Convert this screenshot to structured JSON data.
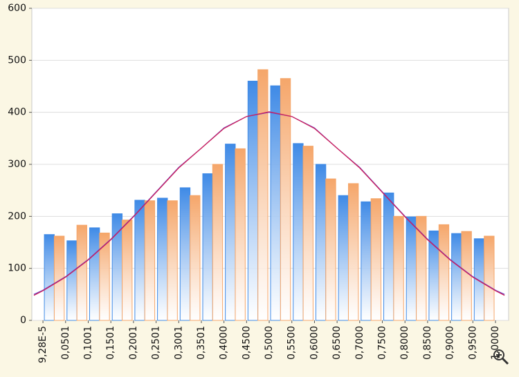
{
  "chart_data": {
    "type": "histogram",
    "bins": [
      {
        "value": 9.28e-05,
        "label": "9,28E-5"
      },
      {
        "value": 0.0501,
        "label": "0,0501"
      },
      {
        "value": 0.1001,
        "label": "0,1001"
      },
      {
        "value": 0.1501,
        "label": "0,1501"
      },
      {
        "value": 0.2001,
        "label": "0,2001"
      },
      {
        "value": 0.2501,
        "label": "0,2501"
      },
      {
        "value": 0.3001,
        "label": "0,3001"
      },
      {
        "value": 0.3501,
        "label": "0,3501"
      },
      {
        "value": 0.4,
        "label": "0,4000"
      },
      {
        "value": 0.45,
        "label": "0,4500"
      },
      {
        "value": 0.5,
        "label": "0,5000"
      },
      {
        "value": 0.55,
        "label": "0,5500"
      },
      {
        "value": 0.6,
        "label": "0,6000"
      },
      {
        "value": 0.65,
        "label": "0,6500"
      },
      {
        "value": 0.7,
        "label": "0,7000"
      },
      {
        "value": 0.75,
        "label": "0,7500"
      },
      {
        "value": 0.8,
        "label": "0,8000"
      },
      {
        "value": 0.85,
        "label": "0,8500"
      },
      {
        "value": 0.9,
        "label": "0,9000"
      },
      {
        "value": 0.95,
        "label": "0,9500"
      },
      {
        "value": 1.0,
        "label": "1,0000"
      }
    ],
    "series": [
      {
        "color": "#3f8ae6",
        "values": [
          165,
          153,
          178,
          205,
          231,
          235,
          255,
          282,
          339,
          460,
          451,
          340,
          300,
          240,
          228,
          245,
          199,
          172,
          167,
          157
        ]
      },
      {
        "color": "#f5a66a",
        "values": [
          162,
          183,
          168,
          193,
          230,
          230,
          240,
          300,
          330,
          482,
          465,
          335,
          272,
          263,
          234,
          200,
          200,
          184,
          171,
          162
        ]
      }
    ],
    "curves": [
      {
        "color": "#6a3fc0",
        "x": [
          -0.02,
          0,
          0.05,
          0.1,
          0.15,
          0.2,
          0.25,
          0.3,
          0.35,
          0.4,
          0.45,
          0.5,
          0.55,
          0.6,
          0.65,
          0.7,
          0.75,
          0.8,
          0.85,
          0.9,
          0.95,
          1.0,
          1.02
        ],
        "values": [
          50,
          58,
          84,
          117,
          156,
          200,
          247,
          294,
          331,
          370,
          392,
          400,
          392,
          370,
          331,
          294,
          247,
          200,
          156,
          117,
          84,
          58,
          50
        ]
      },
      {
        "color": "#d0205a",
        "x": [
          -0.02,
          0,
          0.05,
          0.1,
          0.15,
          0.2,
          0.25,
          0.3,
          0.35,
          0.4,
          0.45,
          0.5,
          0.55,
          0.6,
          0.65,
          0.7,
          0.75,
          0.8,
          0.85,
          0.9,
          0.95,
          1.0,
          1.02
        ],
        "values": [
          48,
          57,
          83,
          116,
          155,
          199,
          246,
          293,
          331,
          369,
          392,
          401,
          392,
          369,
          331,
          293,
          246,
          199,
          155,
          116,
          83,
          57,
          48
        ]
      }
    ],
    "xlim": [
      -0.0245,
      1.029
    ],
    "ylim": [
      0,
      600
    ],
    "yticks": [
      0,
      100,
      200,
      300,
      400,
      500,
      600
    ],
    "grid": true
  }
}
